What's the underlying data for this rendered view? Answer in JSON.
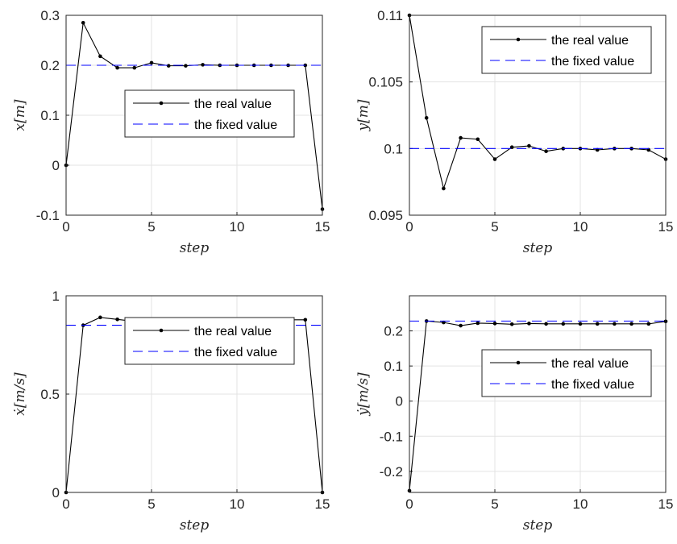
{
  "chart_data": [
    {
      "type": "line",
      "xlabel": "step",
      "ylabel": "x[m]",
      "xlim": [
        0,
        15
      ],
      "ylim": [
        -0.1,
        0.3
      ],
      "xticks": [
        "0",
        "5",
        "10",
        "15"
      ],
      "yticks": [
        "-0.1",
        "0",
        "0.1",
        "0.2",
        "0.3"
      ],
      "grid": true,
      "legend_placement": "center-right",
      "series": [
        {
          "name": "the real value",
          "style": "solid-dots",
          "color": "#000000",
          "x": [
            0,
            1,
            2,
            3,
            4,
            5,
            6,
            7,
            8,
            9,
            10,
            11,
            12,
            13,
            14,
            15
          ],
          "y": [
            0,
            0.285,
            0.218,
            0.195,
            0.195,
            0.205,
            0.199,
            0.199,
            0.201,
            0.2,
            0.2,
            0.2,
            0.2,
            0.2,
            0.2,
            -0.088
          ]
        },
        {
          "name": "the fixed value",
          "style": "dashed",
          "color": "#0000ff",
          "x": [
            0,
            15
          ],
          "y": [
            0.2,
            0.2
          ]
        }
      ]
    },
    {
      "type": "line",
      "xlabel": "step",
      "ylabel": "y[m]",
      "xlim": [
        0,
        15
      ],
      "ylim": [
        0.095,
        0.11
      ],
      "xticks": [
        "0",
        "5",
        "10",
        "15"
      ],
      "yticks": [
        "0.095",
        "0.1",
        "0.105",
        "0.11"
      ],
      "grid": true,
      "legend_placement": "top-right",
      "series": [
        {
          "name": "the real value",
          "style": "solid-dots",
          "color": "#000000",
          "x": [
            0,
            1,
            2,
            3,
            4,
            5,
            6,
            7,
            8,
            9,
            10,
            11,
            12,
            13,
            14,
            15
          ],
          "y": [
            0.11,
            0.1023,
            0.097,
            0.1008,
            0.1007,
            0.0992,
            0.1001,
            0.1002,
            0.0998,
            0.1,
            0.1,
            0.0999,
            0.1,
            0.1,
            0.0999,
            0.0992
          ]
        },
        {
          "name": "the fixed value",
          "style": "dashed",
          "color": "#0000ff",
          "x": [
            0,
            15
          ],
          "y": [
            0.1,
            0.1
          ]
        }
      ]
    },
    {
      "type": "line",
      "xlabel": "step",
      "ylabel": "ẋ[m/s]",
      "xlim": [
        0,
        15
      ],
      "ylim": [
        0,
        1
      ],
      "xticks": [
        "0",
        "5",
        "10",
        "15"
      ],
      "yticks": [
        "0",
        "0.5",
        "1"
      ],
      "grid": true,
      "legend_placement": "center-right",
      "series": [
        {
          "name": "the real value",
          "style": "solid-dots",
          "color": "#000000",
          "x": [
            0,
            1,
            2,
            3,
            4,
            5,
            6,
            7,
            8,
            9,
            10,
            11,
            12,
            13,
            14,
            15
          ],
          "y": [
            0,
            0.85,
            0.89,
            0.88,
            0.87,
            0.88,
            0.878,
            0.875,
            0.878,
            0.878,
            0.878,
            0.878,
            0.878,
            0.878,
            0.878,
            0
          ]
        },
        {
          "name": "the fixed value",
          "style": "dashed",
          "color": "#0000ff",
          "x": [
            0,
            15
          ],
          "y": [
            0.85,
            0.85
          ]
        }
      ]
    },
    {
      "type": "line",
      "xlabel": "step",
      "ylabel": "ẏ[m/s]",
      "xlim": [
        0,
        15
      ],
      "ylim": [
        -0.26,
        0.3
      ],
      "xticks": [
        "0",
        "5",
        "10",
        "15"
      ],
      "yticks": [
        "-0.2",
        "-0.1",
        "0",
        "0.1",
        "0.2"
      ],
      "grid": true,
      "legend_placement": "center-right",
      "series": [
        {
          "name": "the real value",
          "style": "solid-dots",
          "color": "#000000",
          "x": [
            0,
            1,
            2,
            3,
            4,
            5,
            6,
            7,
            8,
            9,
            10,
            11,
            12,
            13,
            14,
            15
          ],
          "y": [
            -0.255,
            0.228,
            0.224,
            0.215,
            0.222,
            0.221,
            0.219,
            0.221,
            0.22,
            0.22,
            0.22,
            0.22,
            0.22,
            0.22,
            0.22,
            0.227
          ]
        },
        {
          "name": "the fixed value",
          "style": "dashed",
          "color": "#0000ff",
          "x": [
            0,
            15
          ],
          "y": [
            0.228,
            0.228
          ]
        }
      ]
    }
  ]
}
